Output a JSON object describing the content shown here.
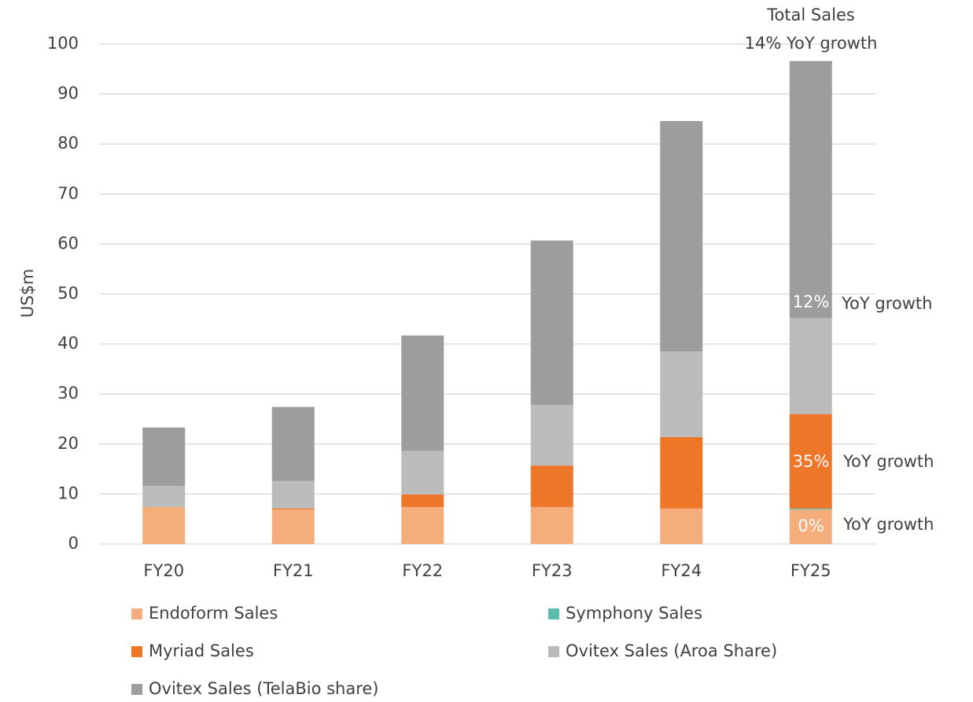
{
  "chart_data": {
    "type": "stacked_bar",
    "ylabel": "US$m",
    "categories": [
      "FY20",
      "FY21",
      "FY22",
      "FY23",
      "FY24",
      "FY25"
    ],
    "series": [
      {
        "name": "Endoform Sales",
        "color": "#f4ad7b",
        "values": [
          7.4,
          6.9,
          7.4,
          7.4,
          7.1,
          6.9
        ]
      },
      {
        "name": "Symphony Sales",
        "color": "#5bbcb0",
        "values": [
          0,
          0,
          0,
          0,
          0,
          0.2
        ]
      },
      {
        "name": "Myriad Sales",
        "color": "#ee7628",
        "values": [
          0,
          0.2,
          2.5,
          8.3,
          14.3,
          18.9
        ]
      },
      {
        "name": "Ovitex Sales (Aroa Share)",
        "color": "#bbbbbc",
        "values": [
          4.2,
          5.5,
          8.7,
          12.1,
          17.1,
          19.2
        ]
      },
      {
        "name": "Ovitex Sales (TelaBio share)",
        "color": "#9d9d9e",
        "values": [
          11.7,
          14.8,
          23.1,
          32.9,
          46.1,
          51.4
        ]
      }
    ],
    "ylim": [
      0,
      100
    ],
    "yticks": [
      0,
      10,
      20,
      30,
      40,
      50,
      60,
      70,
      80,
      90,
      100
    ],
    "grid": true,
    "legend": "bottom",
    "annotations": [
      "Total Sales",
      "14% YoY growth",
      "12%",
      "YoY growth",
      "35%",
      "YoY growth",
      "0%",
      "YoY growth"
    ]
  }
}
